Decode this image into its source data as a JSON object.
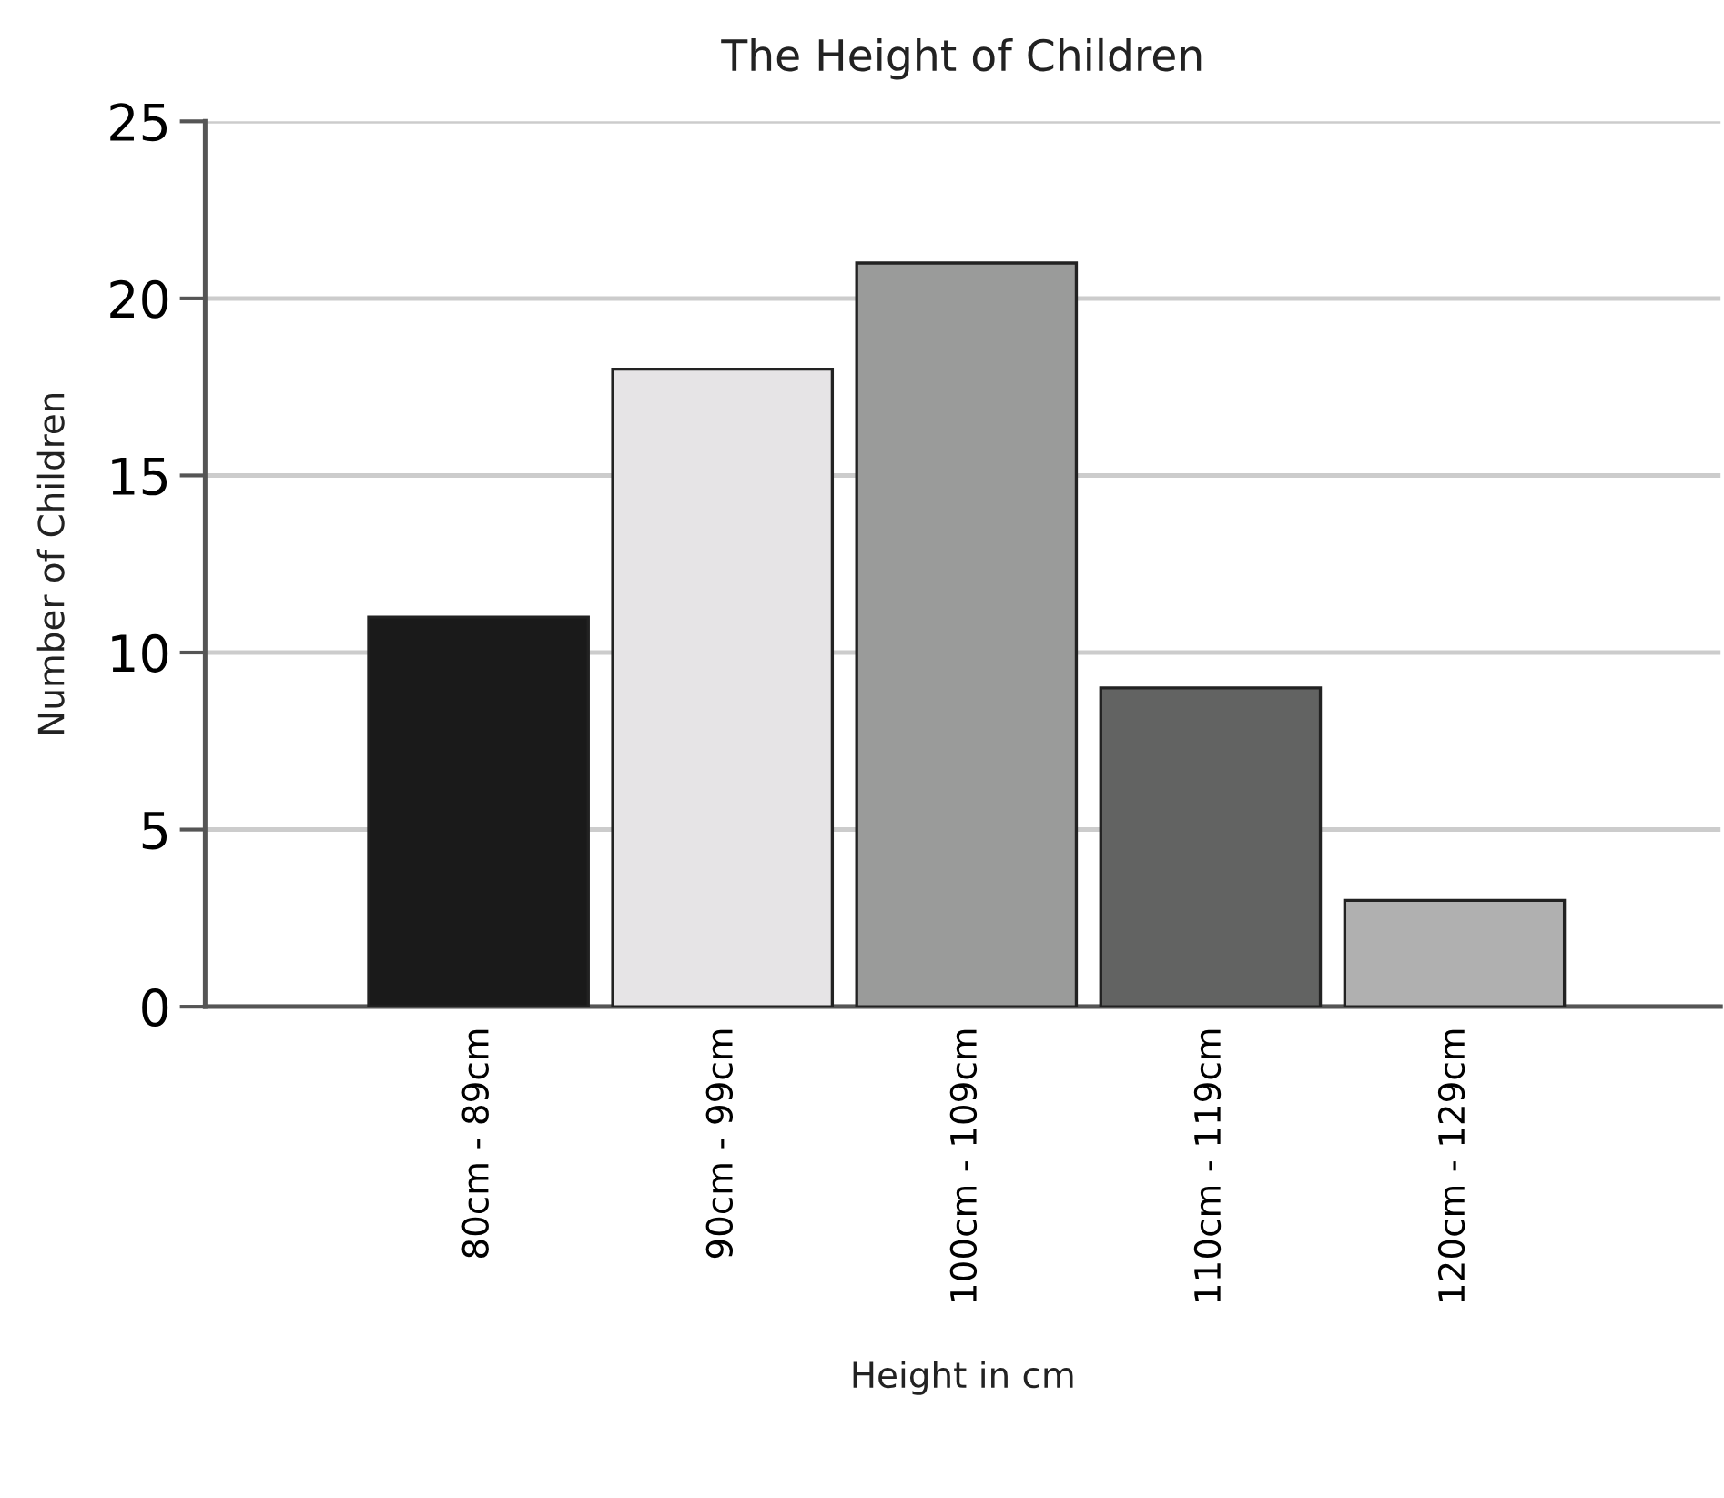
{
  "chart_data": {
    "type": "bar",
    "title": "The Height of Children",
    "xlabel": "Height in cm",
    "ylabel": "Number of Children",
    "categories": [
      "80cm - 89cm",
      "90cm - 99cm",
      "100cm - 109cm",
      "110cm - 119cm",
      "120cm - 129cm"
    ],
    "values": [
      11,
      18,
      21,
      9,
      3
    ],
    "colors": [
      "#1a1a1a",
      "#e6e4e6",
      "#9a9b9a",
      "#626362",
      "#b0b0b0"
    ],
    "ylim": [
      0,
      25
    ],
    "yticks": [
      0,
      5,
      10,
      15,
      20,
      25
    ],
    "grid": "y",
    "legend": false
  }
}
